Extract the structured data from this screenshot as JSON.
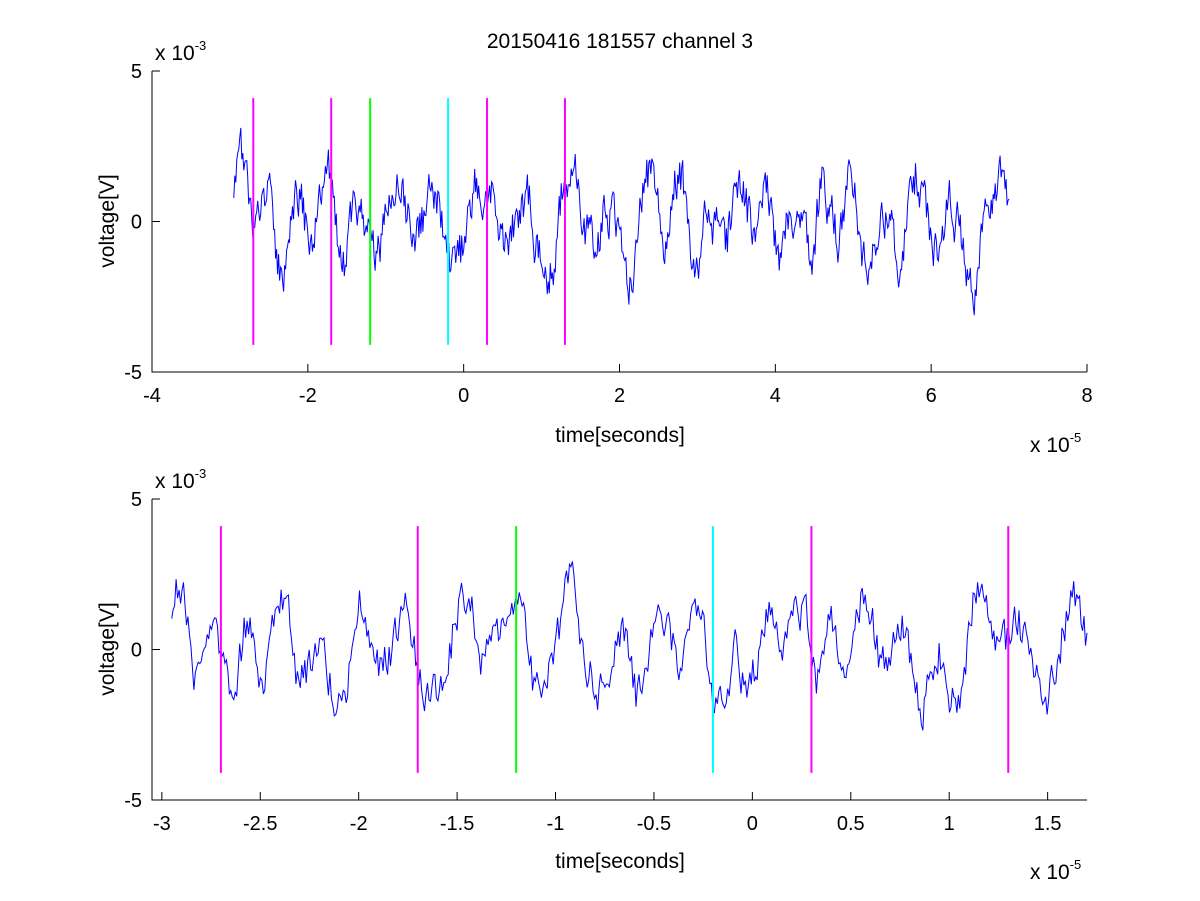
{
  "figure": {
    "title": "20150416 181557 channel 3"
  },
  "colors": {
    "signal": "#0000ff",
    "marker_magenta": "#ff00ff",
    "marker_green": "#00ff00",
    "marker_cyan": "#00ffff",
    "axes": "#000000",
    "background": "#ffffff"
  },
  "chart_data": [
    {
      "type": "line",
      "title": "20150416 181557 channel 3",
      "xlabel": "time[seconds]",
      "ylabel": "voltage[V]",
      "x_multiplier": "x 10",
      "x_exponent": "-5",
      "y_multiplier": "x 10",
      "y_exponent": "-3",
      "xlim": [
        -4e-05,
        8e-05
      ],
      "ylim": [
        -0.005,
        0.005
      ],
      "x_ticks": [
        -4e-05,
        -2e-05,
        0,
        2e-05,
        4e-05,
        6e-05,
        8e-05
      ],
      "x_tick_labels": [
        "-4",
        "-2",
        "0",
        "2",
        "4",
        "6",
        "8"
      ],
      "y_ticks": [
        -0.005,
        0,
        0.005
      ],
      "y_tick_labels": [
        "-5",
        "0",
        "5"
      ],
      "grid": false,
      "signal_range_x": [
        -2.95e-05,
        7e-05
      ],
      "markers": [
        {
          "x": -2.7e-05,
          "color": "magenta",
          "y_range": [
            -0.0041,
            0.0041
          ]
        },
        {
          "x": -1.7e-05,
          "color": "magenta",
          "y_range": [
            -0.0041,
            0.0041
          ]
        },
        {
          "x": -1.2e-05,
          "color": "green",
          "y_range": [
            -0.0041,
            0.0041
          ]
        },
        {
          "x": -2e-06,
          "color": "cyan",
          "y_range": [
            -0.0041,
            0.0041
          ]
        },
        {
          "x": 3e-06,
          "color": "magenta",
          "y_range": [
            -0.0041,
            0.0041
          ]
        },
        {
          "x": 1.3e-05,
          "color": "magenta",
          "y_range": [
            -0.0041,
            0.0041
          ]
        }
      ]
    },
    {
      "type": "line",
      "title": "",
      "xlabel": "time[seconds]",
      "ylabel": "voltage[V]",
      "x_multiplier": "x 10",
      "x_exponent": "-5",
      "y_multiplier": "x 10",
      "y_exponent": "-3",
      "xlim": [
        -3.05e-05,
        1.7e-05
      ],
      "ylim": [
        -0.005,
        0.005
      ],
      "x_ticks": [
        -3e-05,
        -2.5e-05,
        -2e-05,
        -1.5e-05,
        -1e-05,
        -5e-06,
        0,
        5e-06,
        1e-05,
        1.5e-05
      ],
      "x_tick_labels": [
        "-3",
        "-2.5",
        "-2",
        "-1.5",
        "-1",
        "-0.5",
        "0",
        "0.5",
        "1",
        "1.5"
      ],
      "y_ticks": [
        -0.005,
        0,
        0.005
      ],
      "y_tick_labels": [
        "-5",
        "0",
        "5"
      ],
      "grid": false,
      "signal_range_x": [
        -2.95e-05,
        1.7e-05
      ],
      "markers": [
        {
          "x": -2.7e-05,
          "color": "magenta",
          "y_range": [
            -0.0041,
            0.0041
          ]
        },
        {
          "x": -1.7e-05,
          "color": "magenta",
          "y_range": [
            -0.0041,
            0.0041
          ]
        },
        {
          "x": -1.2e-05,
          "color": "green",
          "y_range": [
            -0.0041,
            0.0041
          ]
        },
        {
          "x": -2e-06,
          "color": "cyan",
          "y_range": [
            -0.0041,
            0.0041
          ]
        },
        {
          "x": 3e-06,
          "color": "magenta",
          "y_range": [
            -0.0041,
            0.0041
          ]
        },
        {
          "x": 1.3e-05,
          "color": "magenta",
          "y_range": [
            -0.0041,
            0.0041
          ]
        }
      ]
    }
  ]
}
